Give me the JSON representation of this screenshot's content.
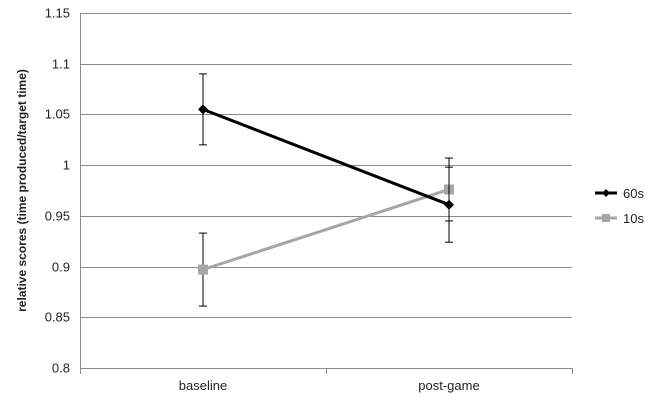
{
  "chart_data": {
    "type": "line",
    "title": "",
    "xlabel": "",
    "ylabel": "relative scores (time produced/target time)",
    "categories": [
      "baseline",
      "post-game"
    ],
    "ylim": [
      0.8,
      1.15
    ],
    "yticks": [
      0.8,
      0.85,
      0.9,
      0.95,
      1,
      1.05,
      1.1,
      1.15
    ],
    "ytick_labels": [
      "0.8",
      "0.85",
      "0.9",
      "0.95",
      "1",
      "1.05",
      "1.1",
      "1.15"
    ],
    "grid": true,
    "legend_position": "right",
    "series": [
      {
        "name": "60s",
        "marker": "diamond",
        "color": "#000000",
        "values": [
          1.055,
          0.961
        ],
        "error_high": [
          1.09,
          1.007
        ],
        "error_low": [
          1.02,
          0.945
        ]
      },
      {
        "name": "10s",
        "marker": "square",
        "color": "#a6a6a6",
        "values": [
          0.897,
          0.976
        ],
        "error_high": [
          0.933,
          0.998
        ],
        "error_low": [
          0.861,
          0.924
        ]
      }
    ]
  }
}
